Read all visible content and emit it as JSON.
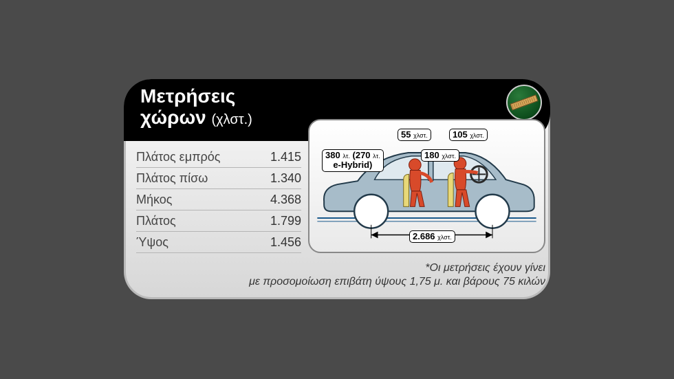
{
  "title": {
    "line1": "Μετρήσεις",
    "line2": "χώρων",
    "unit": "(χλστ.)"
  },
  "badge": {
    "name": "ruler-icon"
  },
  "table": {
    "rows": [
      {
        "label": "Πλάτος εμπρός",
        "value": "1.415"
      },
      {
        "label": "Πλάτος πίσω",
        "value": "1.340"
      },
      {
        "label": "Μήκος",
        "value": "4.368"
      },
      {
        "label": "Πλάτος",
        "value": "1.799"
      },
      {
        "label": "Ύψος",
        "value": "1.456"
      }
    ]
  },
  "diagram": {
    "car_fill": "#a7bcc9",
    "car_stroke": "#223a4a",
    "person_fill": "#d84a2a",
    "ground_color": "#1a5a8c",
    "wheelbase": {
      "value": "2.686",
      "unit": "χλστ."
    },
    "headroom_rear": {
      "value": "55",
      "unit": "χλστ."
    },
    "headroom_front": {
      "value": "105",
      "unit": "χλστ."
    },
    "legroom": {
      "value": "180",
      "unit": "χλστ."
    },
    "trunk": {
      "line1": "380",
      "unit1": "λτ.",
      "paren_val": "270",
      "paren_unit": "λτ.",
      "line2": "e-Hybrid)"
    }
  },
  "footnote": "*Οι μετρήσεις έχουν γίνει\nμε προσομοίωση επιβάτη ύψους 1,75 μ. και βάρους 75 κιλών"
}
